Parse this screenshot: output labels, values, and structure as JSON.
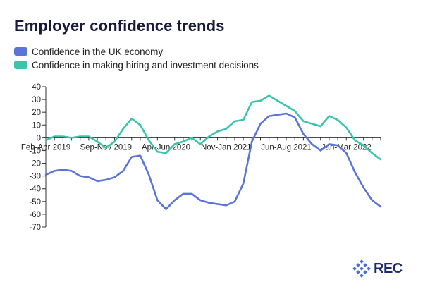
{
  "title": "Employer confidence trends",
  "logo_text": "REC",
  "colors": {
    "economy": "#5b74d6",
    "hiring": "#3bc4ab",
    "axis": "#333333"
  },
  "chart_data": {
    "type": "line",
    "title": "Employer confidence trends",
    "xlabel": "",
    "ylabel": "",
    "ylim": [
      -70,
      40
    ],
    "yticks": [
      40,
      30,
      20,
      10,
      0,
      -10,
      -20,
      -30,
      -40,
      -50,
      -60,
      -70
    ],
    "x_tick_labels": [
      "Feb-Apr 2019",
      "Sep-Nov 2019",
      "Apr-Jun 2020",
      "Nov-Jan 2021",
      "Jun-Aug 2021",
      "Jan-Mar 2022"
    ],
    "x_tick_label_indices": [
      0,
      7,
      14,
      21,
      28,
      35
    ],
    "n_points": 40,
    "legend_position": "top-left",
    "grid": false,
    "series": [
      {
        "name": "Confidence in the UK economy",
        "values": [
          -29,
          -26,
          -25,
          -26,
          -30,
          -31,
          -34,
          -33,
          -31,
          -26,
          -15,
          -14,
          -29,
          -49,
          -56,
          -49,
          -44,
          -44,
          -49,
          -51,
          -52,
          -53,
          -50,
          -36,
          -3,
          11,
          17,
          18,
          19,
          16,
          3,
          -5,
          -10,
          -5,
          -6,
          -12,
          -27,
          -39,
          -49,
          -54
        ]
      },
      {
        "name": "Confidence in making hiring and investment decisions",
        "values": [
          -2,
          1,
          1,
          0,
          1,
          1,
          -3,
          -8,
          -3,
          7,
          15,
          10,
          -2,
          -11,
          -12,
          -5,
          -3,
          0,
          -5,
          1,
          5,
          7,
          13,
          14,
          28,
          29,
          33,
          29,
          25,
          21,
          13,
          11,
          9,
          17,
          14,
          8,
          -2,
          -6,
          -12,
          -17
        ]
      }
    ]
  }
}
